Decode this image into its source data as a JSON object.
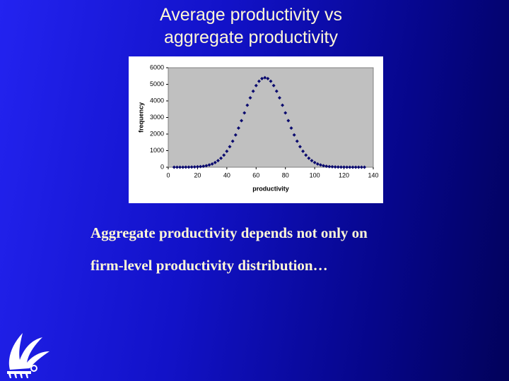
{
  "slide": {
    "title_lines": [
      "Average productivity vs",
      "aggregate productivity"
    ],
    "body_lines": [
      "Aggregate productivity depends not only on",
      "firm-level productivity distribution…"
    ]
  },
  "chart_data": {
    "type": "scatter",
    "xlabel": "productivity",
    "ylabel": "frequency",
    "x": [
      4,
      6,
      8,
      10,
      12,
      14,
      16,
      18,
      20,
      22,
      24,
      26,
      28,
      30,
      32,
      34,
      36,
      38,
      40,
      42,
      44,
      46,
      48,
      50,
      52,
      54,
      56,
      58,
      60,
      62,
      64,
      66,
      68,
      70,
      72,
      74,
      76,
      78,
      80,
      82,
      84,
      86,
      88,
      90,
      92,
      94,
      96,
      98,
      100,
      102,
      104,
      106,
      108,
      110,
      112,
      114,
      116,
      118,
      120,
      122,
      124,
      126,
      128,
      130,
      132,
      134
    ],
    "values": [
      0,
      0,
      0,
      2,
      3,
      5,
      9,
      15,
      24,
      39,
      60,
      91,
      136,
      198,
      283,
      397,
      541,
      731,
      963,
      1241,
      1571,
      1946,
      2362,
      2810,
      3275,
      3741,
      4184,
      4587,
      4925,
      5184,
      5346,
      5400,
      5346,
      5184,
      4925,
      4587,
      4184,
      3741,
      3275,
      2810,
      2362,
      1946,
      1571,
      1241,
      963,
      731,
      541,
      397,
      283,
      198,
      136,
      91,
      60,
      39,
      24,
      15,
      9,
      5,
      3,
      2,
      1,
      0,
      0,
      0,
      0,
      0
    ],
    "color": "#0a0a6e",
    "xlim": [
      0,
      140
    ],
    "ylim": [
      0,
      6000
    ],
    "xticks": [
      0,
      20,
      40,
      60,
      80,
      100,
      120,
      140
    ],
    "yticks": [
      0,
      1000,
      2000,
      3000,
      4000,
      5000,
      6000
    ],
    "plot_background": "#c0c0c0"
  }
}
